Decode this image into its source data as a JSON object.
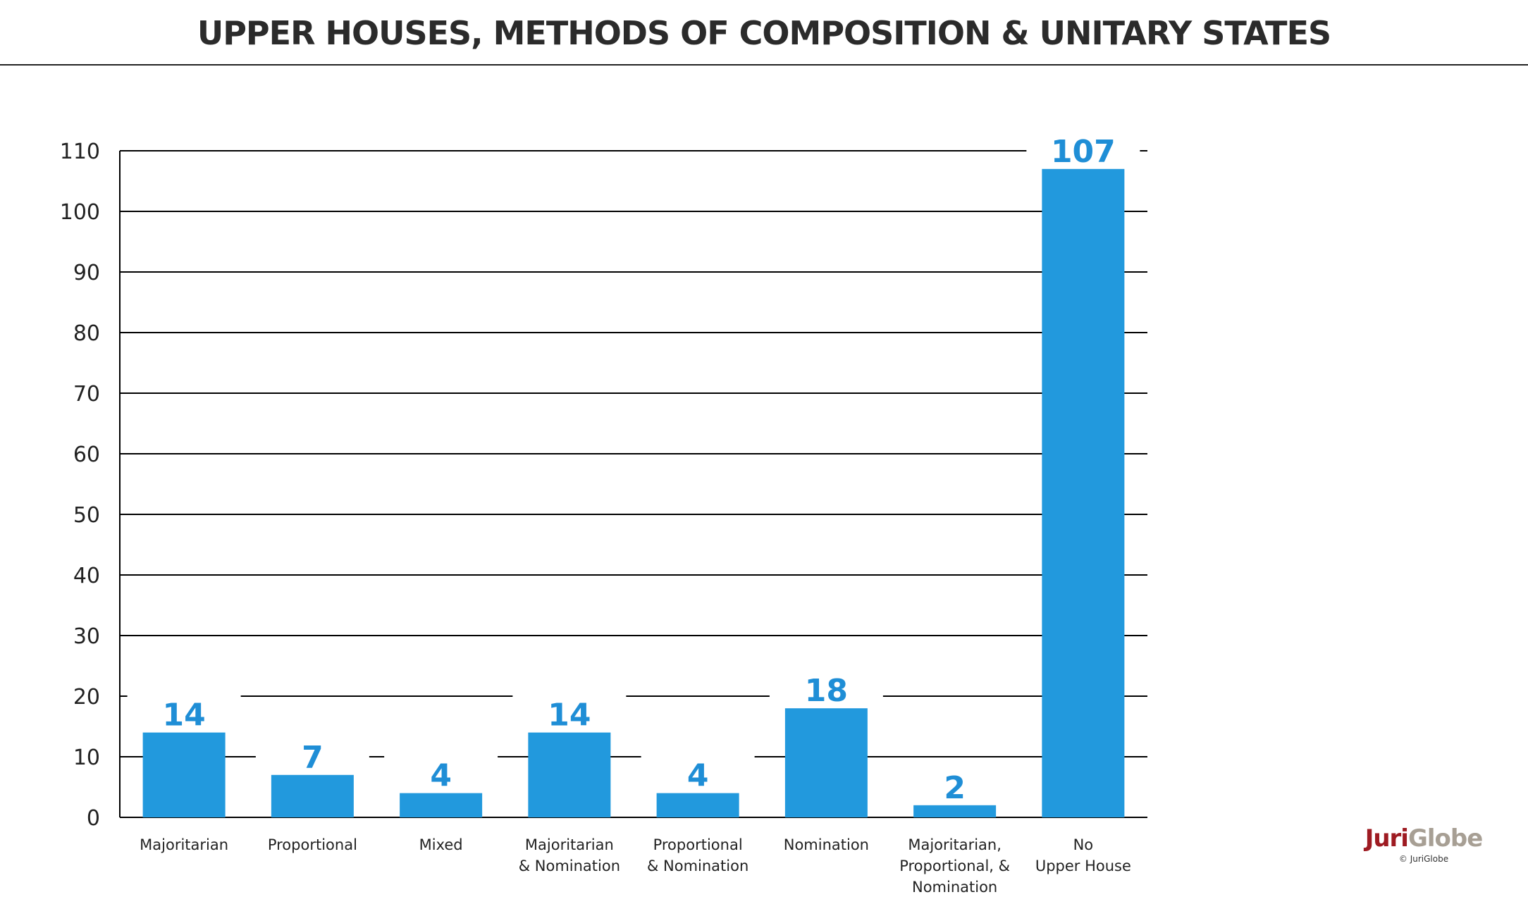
{
  "title": "UPPER HOUSES, METHODS OF COMPOSITION & UNITARY STATES",
  "colors": {
    "bar": "#2299dd",
    "value_label": "#1f8ed6",
    "grid": "#000000",
    "text": "#222222",
    "logo_primary": "#9e1b22",
    "logo_secondary": "#a79f94"
  },
  "logo": {
    "word_a": "Juri",
    "word_b": "Globe",
    "copyright": "© JuriGlobe"
  },
  "chart_data": {
    "type": "bar",
    "title": "UPPER HOUSES, METHODS OF COMPOSITION & UNITARY STATES",
    "xlabel": "",
    "ylabel": "",
    "ylim": [
      0,
      110
    ],
    "yticks": [
      0,
      10,
      20,
      30,
      40,
      50,
      60,
      70,
      80,
      90,
      100,
      110
    ],
    "grid": true,
    "legend": "none",
    "categories": [
      [
        "Majoritarian"
      ],
      [
        "Proportional"
      ],
      [
        "Mixed"
      ],
      [
        "Majoritarian",
        "& Nomination"
      ],
      [
        "Proportional",
        "& Nomination"
      ],
      [
        "Nomination"
      ],
      [
        "Majoritarian,",
        "Proportional, &",
        "Nomination"
      ],
      [
        "No",
        "Upper House"
      ]
    ],
    "values": [
      14,
      7,
      4,
      14,
      4,
      18,
      2,
      107
    ]
  }
}
